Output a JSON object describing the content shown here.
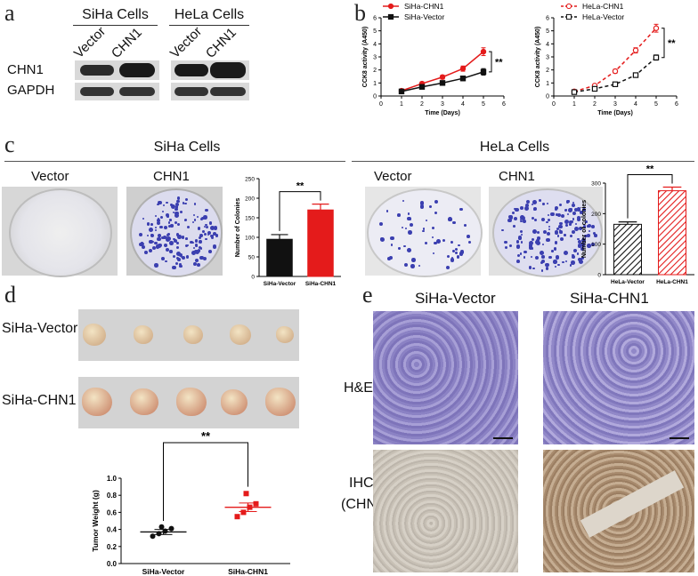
{
  "panels": {
    "a": "a",
    "b": "b",
    "c": "c",
    "d": "d",
    "e": "e"
  },
  "colors": {
    "red": "#e41b1b",
    "black": "#111111",
    "plate_stain": "#3b3fb0",
    "he_stain": "#8f86c6",
    "ihc_stain": "#c9b59a"
  },
  "panel_a": {
    "left_title": "SiHa Cells",
    "right_title": "HeLa Cells",
    "lane_labels": [
      "Vector",
      "CHN1"
    ],
    "row_labels": [
      "CHN1",
      "GAPDH"
    ]
  },
  "panel_c": {
    "left_title": "SiHa Cells",
    "right_title": "HeLa Cells",
    "plate_labels": [
      "Vector",
      "CHN1"
    ]
  },
  "panel_d": {
    "row_labels": [
      "SiHa-Vector",
      "SiHa-CHN1"
    ]
  },
  "panel_e": {
    "col_labels": [
      "SiHa-Vector",
      "SiHa-CHN1"
    ],
    "row_label_he": "H&E",
    "row_label_ihc_1": "IHC",
    "row_label_ihc_2": "(CHN1)"
  },
  "chart_data": [
    {
      "id": "b-siha",
      "type": "line",
      "xlabel": "Time (Days)",
      "ylabel": "CCK8 activity (A450)",
      "xlim": [
        0,
        6
      ],
      "ylim": [
        0,
        6
      ],
      "xticks": [
        0,
        1,
        2,
        3,
        4,
        5,
        6
      ],
      "yticks": [
        0,
        1,
        2,
        3,
        4,
        5,
        6
      ],
      "x": [
        1,
        2,
        3,
        4,
        5
      ],
      "series": [
        {
          "name": "SiHa-CHN1",
          "color": "#e41b1b",
          "values": [
            0.4,
            0.95,
            1.45,
            2.1,
            3.4
          ],
          "errors": [
            0.1,
            0.12,
            0.15,
            0.2,
            0.3
          ],
          "marker": "filled-circle",
          "dash": false
        },
        {
          "name": "SiHa-Vector",
          "color": "#111111",
          "values": [
            0.35,
            0.7,
            1.0,
            1.35,
            1.85
          ],
          "errors": [
            0.08,
            0.1,
            0.12,
            0.18,
            0.25
          ],
          "marker": "filled-square",
          "dash": false
        }
      ],
      "significance": "**"
    },
    {
      "id": "b-hela",
      "type": "line",
      "xlabel": "Time (Days)",
      "ylabel": "CCK8 activity (A450)",
      "xlim": [
        0,
        6
      ],
      "ylim": [
        0,
        6
      ],
      "xticks": [
        0,
        1,
        2,
        3,
        4,
        5,
        6
      ],
      "yticks": [
        0,
        1,
        2,
        3,
        4,
        5,
        6
      ],
      "x": [
        1,
        2,
        3,
        4,
        5
      ],
      "series": [
        {
          "name": "HeLa-CHN1",
          "color": "#e41b1b",
          "values": [
            0.35,
            0.8,
            1.9,
            3.5,
            5.2
          ],
          "errors": [
            0.08,
            0.1,
            0.15,
            0.2,
            0.3
          ],
          "marker": "open-circle",
          "dash": true
        },
        {
          "name": "HeLa-Vector",
          "color": "#111111",
          "values": [
            0.3,
            0.55,
            0.9,
            1.6,
            2.95
          ],
          "errors": [
            0.06,
            0.08,
            0.12,
            0.15,
            0.2
          ],
          "marker": "open-square",
          "dash": true
        }
      ],
      "significance": "**"
    },
    {
      "id": "c-siha",
      "type": "bar",
      "ylabel": "Number of Colonies",
      "ylim": [
        0,
        250
      ],
      "yticks": [
        0,
        50,
        100,
        150,
        200,
        250
      ],
      "categories": [
        "SiHa-Vector",
        "SiHa-CHN1"
      ],
      "values": [
        95,
        170
      ],
      "errors": [
        12,
        15
      ],
      "bar_colors": [
        "#111111",
        "#e41b1b"
      ],
      "hatched": false,
      "significance": "**"
    },
    {
      "id": "c-hela",
      "type": "bar",
      "ylabel": "Number of colonies",
      "ylim": [
        0,
        300
      ],
      "yticks": [
        0,
        100,
        200,
        300
      ],
      "categories": [
        "HeLa-Vector",
        "HeLa-CHN1"
      ],
      "values": [
        165,
        275
      ],
      "errors": [
        8,
        12
      ],
      "bar_colors": [
        "#111111",
        "#e41b1b"
      ],
      "hatched": true,
      "significance": "**"
    },
    {
      "id": "d-weight",
      "type": "scatter",
      "ylabel": "Tumor Weight (g)",
      "ylim": [
        0,
        1.0
      ],
      "yticks": [
        0.0,
        0.2,
        0.4,
        0.6,
        0.8,
        1.0
      ],
      "categories": [
        "SiHa-Vector",
        "SiHa-CHN1"
      ],
      "series": [
        {
          "name": "SiHa-Vector",
          "color": "#111111",
          "marker": "circle",
          "values": [
            0.32,
            0.35,
            0.38,
            0.41,
            0.43
          ],
          "mean": 0.37,
          "sem": 0.03
        },
        {
          "name": "SiHa-CHN1",
          "color": "#e41b1b",
          "marker": "square",
          "values": [
            0.55,
            0.6,
            0.66,
            0.7,
            0.82
          ],
          "mean": 0.66,
          "sem": 0.05
        }
      ],
      "significance": "**"
    }
  ]
}
